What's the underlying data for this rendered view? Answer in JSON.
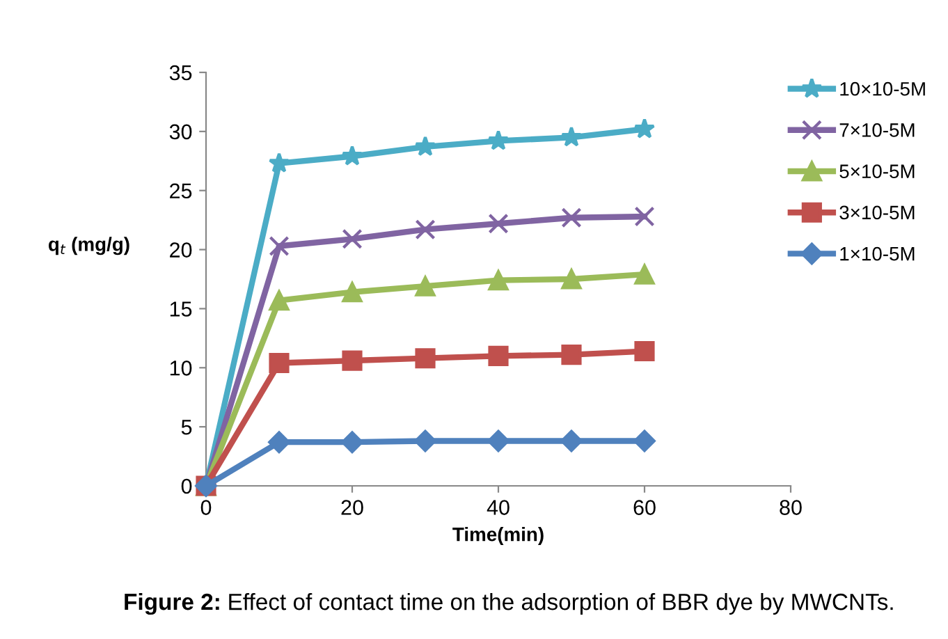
{
  "chart_data": {
    "type": "line",
    "xlabel": "Time(min)",
    "ylabel": "q$_{t}$ (mg/g)",
    "x": [
      0,
      10,
      20,
      30,
      40,
      50,
      60
    ],
    "series": [
      {
        "name": "10×10-5M",
        "color": "#4bacc6",
        "marker": "star",
        "values": [
          0,
          27.3,
          27.9,
          28.7,
          29.2,
          29.5,
          30.2
        ]
      },
      {
        "name": "7×10-5M",
        "color": "#8064a2",
        "marker": "cross",
        "values": [
          0,
          20.3,
          20.9,
          21.7,
          22.2,
          22.7,
          22.8
        ]
      },
      {
        "name": "5×10-5M",
        "color": "#9bbb59",
        "marker": "triangle",
        "values": [
          0,
          15.7,
          16.4,
          16.9,
          17.4,
          17.5,
          17.9
        ]
      },
      {
        "name": "3×10-5M",
        "color": "#c0504d",
        "marker": "square",
        "values": [
          0,
          10.4,
          10.6,
          10.8,
          11.0,
          11.1,
          11.4
        ]
      },
      {
        "name": "1×10-5M",
        "color": "#4f81bd",
        "marker": "diamond",
        "values": [
          0,
          3.7,
          3.7,
          3.8,
          3.8,
          3.8,
          3.8
        ]
      }
    ],
    "xlim": [
      0,
      80
    ],
    "xticks": [
      0,
      20,
      40,
      60,
      80
    ],
    "ylim": [
      0,
      35
    ],
    "yticks": [
      0,
      5,
      10,
      15,
      20,
      25,
      30,
      35
    ],
    "grid": false,
    "legend": "top right",
    "line_style": "solid",
    "annotations": [
      "Figure 2: Effect of contact time on the adsorption of BBR dye by MWCNTs."
    ]
  }
}
